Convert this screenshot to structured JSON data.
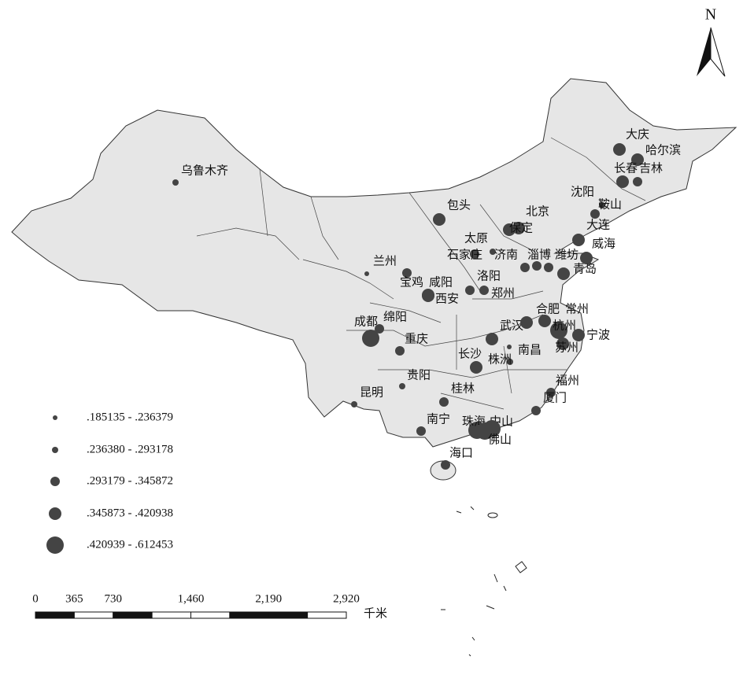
{
  "north_label": "N",
  "cities": [
    "乌鲁木齐",
    "包头",
    "大庆",
    "哈尔滨",
    "长春",
    "吉林",
    "沈阳",
    "鞍山",
    "大连",
    "威海",
    "北京",
    "保定",
    "太原",
    "石家庄",
    "济南",
    "淄博",
    "潍坊",
    "青岛",
    "兰州",
    "宝鸡",
    "咸阳",
    "西安",
    "洛阳",
    "郑州",
    "成都",
    "绵阳",
    "重庆",
    "武汉",
    "合肥",
    "常州",
    "杭州",
    "宁波",
    "苏州",
    "南昌",
    "长沙",
    "株洲",
    "贵阳",
    "昆明",
    "桂林",
    "福州",
    "厦门",
    "南宁",
    "珠海",
    "中山",
    "佛山",
    "海口"
  ],
  "legend": [
    ".185135 - .236379",
    ".236380 - .293178",
    ".293179 - .345872",
    ".345873 - .420938",
    ".420939 - .612453"
  ],
  "scale": {
    "ticks": [
      0,
      365,
      730,
      {
        "value": 1460,
        "label": "1,460"
      },
      {
        "value": 2190,
        "label": "2,190"
      },
      {
        "value": 2920,
        "label": "2,920"
      }
    ],
    "unit": "千米"
  }
}
